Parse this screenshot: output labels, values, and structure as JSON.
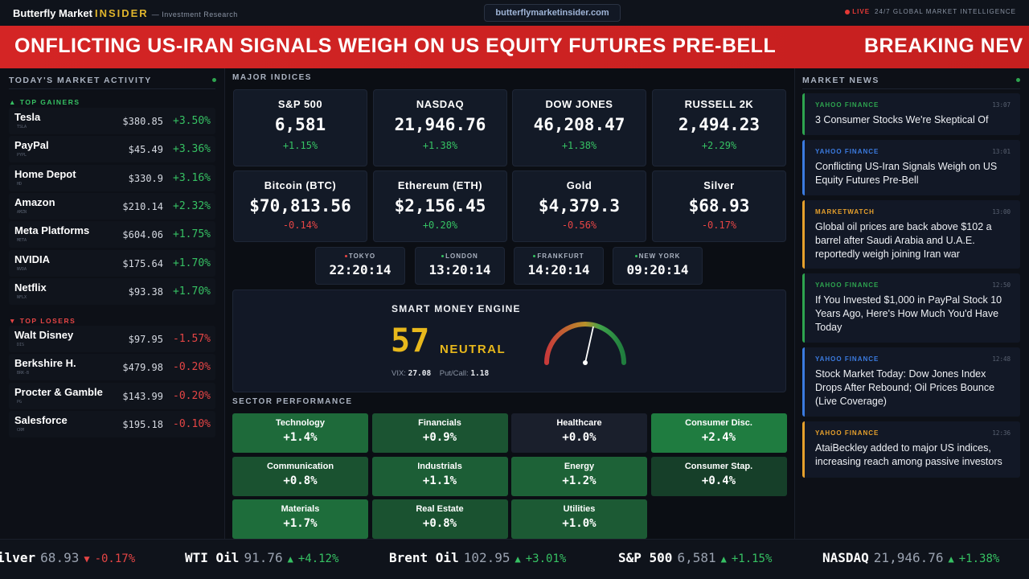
{
  "header": {
    "brand_main": "Butterfly Market",
    "brand_accent": "INSIDER",
    "brand_sub": "— Investment Research",
    "url": "butterflymarketinsider.com",
    "live": "LIVE",
    "tagline": "24/7 GLOBAL MARKET INTELLIGENCE"
  },
  "banner": {
    "headline": "ONFLICTING US-IRAN SIGNALS WEIGH ON US EQUITY FUTURES PRE-BELL",
    "next": "BREAKING NEV"
  },
  "left": {
    "title": "TODAY'S MARKET ACTIVITY",
    "gainers_label": "▲ TOP GAINERS",
    "losers_label": "▼ TOP LOSERS",
    "gainers": [
      {
        "name": "Tesla",
        "ticker": "TSLA",
        "price": "$380.85",
        "change": "+3.50%"
      },
      {
        "name": "PayPal",
        "ticker": "PYPL",
        "price": "$45.49",
        "change": "+3.36%"
      },
      {
        "name": "Home Depot",
        "ticker": "HD",
        "price": "$330.9",
        "change": "+3.16%"
      },
      {
        "name": "Amazon",
        "ticker": "AMZN",
        "price": "$210.14",
        "change": "+2.32%"
      },
      {
        "name": "Meta Platforms",
        "ticker": "META",
        "price": "$604.06",
        "change": "+1.75%"
      },
      {
        "name": "NVIDIA",
        "ticker": "NVDA",
        "price": "$175.64",
        "change": "+1.70%"
      },
      {
        "name": "Netflix",
        "ticker": "NFLX",
        "price": "$93.38",
        "change": "+1.70%"
      }
    ],
    "losers": [
      {
        "name": "Walt Disney",
        "ticker": "DIS",
        "price": "$97.95",
        "change": "-1.57%"
      },
      {
        "name": "Berkshire H.",
        "ticker": "BRK-B",
        "price": "$479.98",
        "change": "-0.20%"
      },
      {
        "name": "Procter & Gamble",
        "ticker": "PG",
        "price": "$143.99",
        "change": "-0.20%"
      },
      {
        "name": "Salesforce",
        "ticker": "CRM",
        "price": "$195.18",
        "change": "-0.10%"
      }
    ]
  },
  "center": {
    "indices_title": "MAJOR INDICES",
    "indices": [
      {
        "name": "S&P 500",
        "value": "6,581",
        "change": "+1.15%"
      },
      {
        "name": "NASDAQ",
        "value": "21,946.76",
        "change": "+1.38%"
      },
      {
        "name": "DOW JONES",
        "value": "46,208.47",
        "change": "+1.38%"
      },
      {
        "name": "RUSSELL 2K",
        "value": "2,494.23",
        "change": "+2.29%"
      },
      {
        "name": "Bitcoin (BTC)",
        "value": "$70,813.56",
        "change": "-0.14%"
      },
      {
        "name": "Ethereum (ETH)",
        "value": "$2,156.45",
        "change": "+0.20%"
      },
      {
        "name": "Gold",
        "value": "$4,379.3",
        "change": "-0.56%"
      },
      {
        "name": "Silver",
        "value": "$68.93",
        "change": "-0.17%"
      }
    ],
    "clocks": [
      {
        "city": "TOKYO",
        "time": "22:20:14",
        "status": "#e64545"
      },
      {
        "city": "LONDON",
        "time": "13:20:14",
        "status": "#36c163"
      },
      {
        "city": "FRANKFURT",
        "time": "14:20:14",
        "status": "#36c163"
      },
      {
        "city": "NEW YORK",
        "time": "09:20:14",
        "status": "#36c163"
      }
    ],
    "smart_money": {
      "title": "SMART MONEY ENGINE",
      "score": "57",
      "score_value": 57,
      "label": "NEUTRAL",
      "vix_label": "VIX:",
      "vix": "27.08",
      "pc_label": "Put/Call:",
      "pc": "1.18"
    },
    "sectors_title": "SECTOR PERFORMANCE",
    "sectors": [
      {
        "name": "Technology",
        "value": "+1.4%",
        "color": "#1e6a3a"
      },
      {
        "name": "Financials",
        "value": "+0.9%",
        "color": "#1b5432"
      },
      {
        "name": "Healthcare",
        "value": "+0.0%",
        "color": "#1a1f2c"
      },
      {
        "name": "Consumer Disc.",
        "value": "+2.4%",
        "color": "#1f7c40"
      },
      {
        "name": "Communication",
        "value": "+0.8%",
        "color": "#1a5230"
      },
      {
        "name": "Industrials",
        "value": "+1.1%",
        "color": "#1c5e36"
      },
      {
        "name": "Energy",
        "value": "+1.2%",
        "color": "#1d6237"
      },
      {
        "name": "Consumer Stap.",
        "value": "+0.4%",
        "color": "#163f29"
      },
      {
        "name": "Materials",
        "value": "+1.7%",
        "color": "#1e6d3b"
      },
      {
        "name": "Real Estate",
        "value": "+0.8%",
        "color": "#1a5230"
      },
      {
        "name": "Utilities",
        "value": "+1.0%",
        "color": "#1c5a34"
      }
    ]
  },
  "news": {
    "title": "MARKET NEWS",
    "items": [
      {
        "source": "YAHOO FINANCE",
        "time": "13:07",
        "headline": "3 Consumer Stocks We're Skeptical Of",
        "color": "#2ea44f"
      },
      {
        "source": "YAHOO FINANCE",
        "time": "13:01",
        "headline": "Conflicting US-Iran Signals Weigh on US Equity Futures Pre-Bell",
        "color": "#3b7be0"
      },
      {
        "source": "MARKETWATCH",
        "time": "13:00",
        "headline": "Global oil prices are back above $102 a barrel after Saudi Arabia and U.A.E. reportedly weigh joining Iran war",
        "color": "#e6a02c"
      },
      {
        "source": "YAHOO FINANCE",
        "time": "12:50",
        "headline": "If You Invested $1,000 in PayPal Stock 10 Years Ago, Here's How Much You'd Have Today",
        "color": "#2ea44f"
      },
      {
        "source": "YAHOO FINANCE",
        "time": "12:48",
        "headline": "Stock Market Today: Dow Jones Index Drops After Rebound; Oil Prices Bounce (Live Coverage)",
        "color": "#3b7be0"
      },
      {
        "source": "YAHOO FINANCE",
        "time": "12:36",
        "headline": "AtaiBeckley added to major US indices, increasing reach among passive investors",
        "color": "#e6a02c"
      }
    ]
  },
  "ticker": [
    {
      "symbol": "ilver",
      "price": "68.93",
      "arrow": "▼",
      "change": "-0.17%"
    },
    {
      "symbol": "WTI Oil",
      "price": "91.76",
      "arrow": "▲",
      "change": "+4.12%"
    },
    {
      "symbol": "Brent Oil",
      "price": "102.95",
      "arrow": "▲",
      "change": "+3.01%"
    },
    {
      "symbol": "S&P 500",
      "price": "6,581",
      "arrow": "▲",
      "change": "+1.15%"
    },
    {
      "symbol": "NASDAQ",
      "price": "21,946.76",
      "arrow": "▲",
      "change": "+1.38%"
    }
  ]
}
